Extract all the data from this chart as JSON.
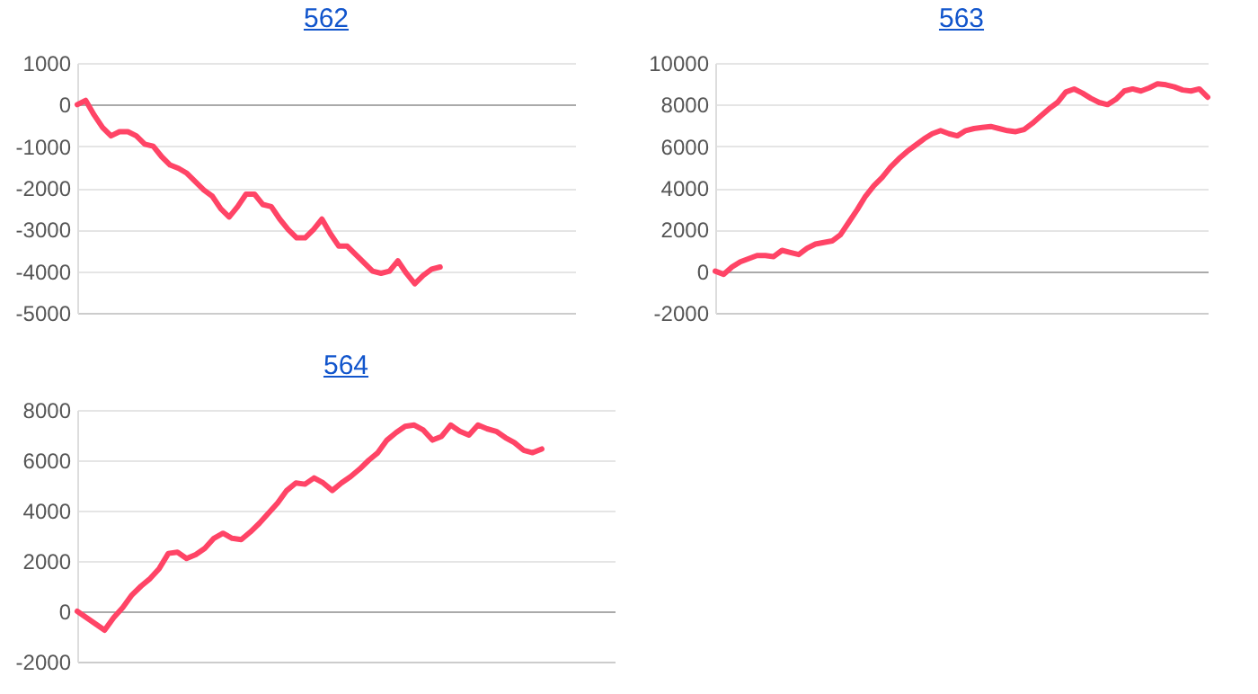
{
  "chart_data": [
    {
      "type": "line",
      "title": "562",
      "categories": [
        null,
        null,
        null,
        null,
        null,
        null,
        null,
        null,
        null,
        null,
        null,
        null,
        null,
        null,
        null,
        null,
        null,
        null,
        null,
        null,
        null,
        null,
        null,
        null,
        null,
        null,
        null,
        null,
        null,
        null,
        null,
        null,
        null,
        null,
        null,
        null,
        null,
        null,
        null,
        null,
        null,
        null,
        null,
        null,
        null,
        null,
        null,
        null,
        null,
        null,
        null,
        null,
        null,
        null,
        null,
        null,
        null,
        null,
        null,
        null
      ],
      "series": [
        {
          "color": "#ff4466",
          "values": [
            0,
            100,
            -250,
            -550,
            -750,
            -650,
            -650,
            -750,
            -950,
            -1000,
            -1250,
            -1450,
            -1530,
            -1650,
            -1850,
            -2050,
            -2200,
            -2500,
            -2700,
            -2450,
            -2150,
            -2150,
            -2400,
            -2450,
            -2750,
            -3000,
            -3200,
            -3200,
            -3000,
            -2750,
            -3100,
            -3400,
            -3400,
            -3600,
            -3800,
            -4000,
            -4050,
            -4000,
            -3750,
            -4050,
            -4300,
            -4100,
            -3950,
            -3900,
            null,
            null,
            null,
            null,
            null,
            null,
            null,
            null,
            null,
            null,
            null,
            null,
            null,
            null,
            null,
            null
          ]
        }
      ],
      "ylim": [
        -5000,
        1000
      ],
      "yticks": [
        -5000,
        -4000,
        -3000,
        -2000,
        -1000,
        0,
        1000
      ],
      "grid": "y",
      "tick_labels": "y",
      "marker": "none"
    },
    {
      "type": "line",
      "title": "563",
      "categories": [
        null,
        null,
        null,
        null,
        null,
        null,
        null,
        null,
        null,
        null,
        null,
        null,
        null,
        null,
        null,
        null,
        null,
        null,
        null,
        null,
        null,
        null,
        null,
        null,
        null,
        null,
        null,
        null,
        null,
        null,
        null,
        null,
        null,
        null,
        null,
        null,
        null,
        null,
        null,
        null,
        null,
        null,
        null,
        null,
        null,
        null,
        null,
        null,
        null,
        null,
        null,
        null,
        null,
        null,
        null,
        null,
        null,
        null,
        null,
        null
      ],
      "series": [
        {
          "color": "#ff4466",
          "values": [
            0,
            -150,
            200,
            450,
            600,
            750,
            750,
            700,
            1000,
            900,
            800,
            1100,
            1300,
            1380,
            1450,
            1750,
            2350,
            2950,
            3600,
            4100,
            4500,
            5000,
            5400,
            5750,
            6050,
            6350,
            6600,
            6750,
            6600,
            6500,
            6750,
            6850,
            6900,
            6950,
            6850,
            6750,
            6700,
            6800,
            7100,
            7450,
            7800,
            8100,
            8600,
            8750,
            8550,
            8300,
            8100,
            8000,
            8250,
            8650,
            8750,
            8650,
            8800,
            9000,
            8950,
            8850,
            8700,
            8650,
            8750,
            8350
          ]
        }
      ],
      "ylim": [
        -2000,
        10000
      ],
      "yticks": [
        -2000,
        0,
        2000,
        4000,
        6000,
        8000,
        10000
      ],
      "grid": "y",
      "tick_labels": "y",
      "marker": "none"
    },
    {
      "type": "line",
      "title": "564",
      "categories": [
        null,
        null,
        null,
        null,
        null,
        null,
        null,
        null,
        null,
        null,
        null,
        null,
        null,
        null,
        null,
        null,
        null,
        null,
        null,
        null,
        null,
        null,
        null,
        null,
        null,
        null,
        null,
        null,
        null,
        null,
        null,
        null,
        null,
        null,
        null,
        null,
        null,
        null,
        null,
        null,
        null,
        null,
        null,
        null,
        null,
        null,
        null,
        null,
        null,
        null,
        null,
        null,
        null,
        null,
        null,
        null,
        null,
        null,
        null,
        null
      ],
      "series": [
        {
          "color": "#ff4466",
          "values": [
            0,
            -250,
            -500,
            -750,
            -250,
            150,
            650,
            1000,
            1300,
            1700,
            2300,
            2350,
            2100,
            2250,
            2500,
            2900,
            3100,
            2900,
            2850,
            3150,
            3500,
            3900,
            4300,
            4800,
            5100,
            5050,
            5300,
            5100,
            4800,
            5100,
            5350,
            5650,
            6000,
            6300,
            6800,
            7100,
            7350,
            7400,
            7200,
            6800,
            6950,
            7400,
            7150,
            7000,
            7400,
            7250,
            7150,
            6900,
            6700,
            6400,
            6300,
            6450,
            null,
            null,
            null,
            null,
            null,
            null,
            null,
            null
          ]
        }
      ],
      "ylim": [
        -2000,
        8000
      ],
      "yticks": [
        -2000,
        0,
        2000,
        4000,
        6000,
        8000
      ],
      "grid": "y",
      "tick_labels": "y",
      "marker": "none"
    }
  ]
}
